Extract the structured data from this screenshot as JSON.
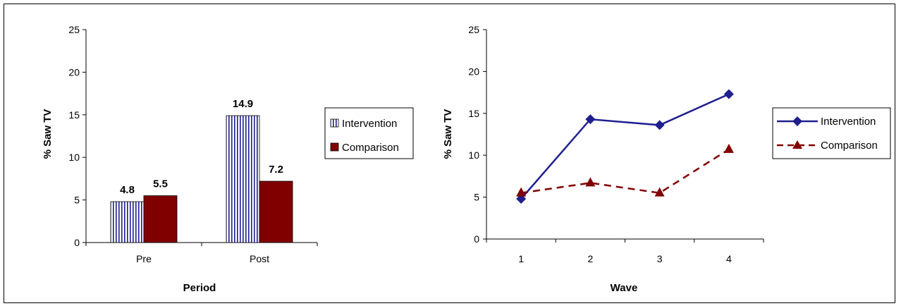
{
  "colors": {
    "intervention": "#1f1f8f",
    "comparison": "#800000",
    "axis": "#000000"
  },
  "chart_data": [
    {
      "type": "bar",
      "title": "",
      "xlabel": "Period",
      "ylabel": "% Saw TV",
      "categories": [
        "Pre",
        "Post"
      ],
      "ylim": [
        0,
        25
      ],
      "yticks": [
        "0",
        "5",
        "10",
        "15",
        "20",
        "25"
      ],
      "series": [
        {
          "name": "Intervention",
          "values": [
            4.8,
            14.9
          ],
          "value_labels": [
            "4.8",
            "14.9"
          ],
          "fill": "vertical-stripes"
        },
        {
          "name": "Comparison",
          "values": [
            5.5,
            7.2
          ],
          "value_labels": [
            "5.5",
            "7.2"
          ],
          "fill": "solid"
        }
      ],
      "legend": "right",
      "grid": false
    },
    {
      "type": "line",
      "title": "",
      "xlabel": "Wave",
      "ylabel": "% Saw TV",
      "categories": [
        "1",
        "2",
        "3",
        "4"
      ],
      "ylim": [
        0,
        25
      ],
      "yticks": [
        "0",
        "5",
        "10",
        "15",
        "20",
        "25"
      ],
      "series": [
        {
          "name": "Intervention",
          "values": [
            4.8,
            14.3,
            13.6,
            17.3
          ],
          "marker": "diamond",
          "line": "solid"
        },
        {
          "name": "Comparison",
          "values": [
            5.5,
            6.7,
            5.5,
            10.7
          ],
          "marker": "triangle",
          "line": "dashed"
        }
      ],
      "legend": "right",
      "grid": false
    }
  ]
}
